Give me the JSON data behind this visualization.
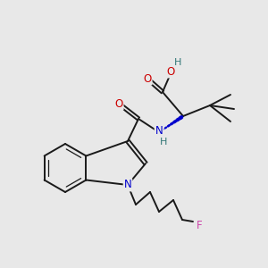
{
  "bg_color": "#e8e8e8",
  "atom_colors": {
    "C": "#000000",
    "O": "#cc0000",
    "N": "#0000cc",
    "F": "#cc44aa",
    "H": "#337777"
  },
  "bond_color": "#1a1a1a",
  "bond_width": 1.4,
  "figsize": [
    3.0,
    3.0
  ],
  "dpi": 100
}
